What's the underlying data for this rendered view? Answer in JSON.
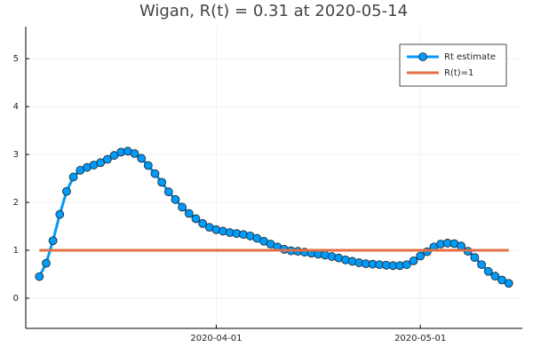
{
  "chart_data": {
    "type": "line",
    "title": "Wigan, R(t) = 0.31 at 2020-05-14",
    "series": [
      {
        "name": "Rt estimate",
        "color": "#009af9",
        "markers": true,
        "x": [
          "2020-03-06",
          "2020-03-07",
          "2020-03-08",
          "2020-03-09",
          "2020-03-10",
          "2020-03-11",
          "2020-03-12",
          "2020-03-13",
          "2020-03-14",
          "2020-03-15",
          "2020-03-16",
          "2020-03-17",
          "2020-03-18",
          "2020-03-19",
          "2020-03-20",
          "2020-03-21",
          "2020-03-22",
          "2020-03-23",
          "2020-03-24",
          "2020-03-25",
          "2020-03-26",
          "2020-03-27",
          "2020-03-28",
          "2020-03-29",
          "2020-03-30",
          "2020-03-31",
          "2020-04-01",
          "2020-04-02",
          "2020-04-03",
          "2020-04-04",
          "2020-04-05",
          "2020-04-06",
          "2020-04-07",
          "2020-04-08",
          "2020-04-09",
          "2020-04-10",
          "2020-04-11",
          "2020-04-12",
          "2020-04-13",
          "2020-04-14",
          "2020-04-15",
          "2020-04-16",
          "2020-04-17",
          "2020-04-18",
          "2020-04-19",
          "2020-04-20",
          "2020-04-21",
          "2020-04-22",
          "2020-04-23",
          "2020-04-24",
          "2020-04-25",
          "2020-04-26",
          "2020-04-27",
          "2020-04-28",
          "2020-04-29",
          "2020-04-30",
          "2020-05-01",
          "2020-05-02",
          "2020-05-03",
          "2020-05-04",
          "2020-05-05",
          "2020-05-06",
          "2020-05-07",
          "2020-05-08",
          "2020-05-09",
          "2020-05-10",
          "2020-05-11",
          "2020-05-12",
          "2020-05-13",
          "2020-05-14"
        ],
        "values": [
          0.45,
          0.73,
          1.2,
          1.75,
          2.23,
          2.53,
          2.67,
          2.73,
          2.78,
          2.83,
          2.9,
          2.98,
          3.05,
          3.07,
          3.02,
          2.92,
          2.77,
          2.6,
          2.42,
          2.22,
          2.06,
          1.9,
          1.77,
          1.66,
          1.56,
          1.48,
          1.43,
          1.4,
          1.37,
          1.35,
          1.33,
          1.3,
          1.25,
          1.19,
          1.13,
          1.07,
          1.02,
          0.99,
          0.98,
          0.96,
          0.94,
          0.92,
          0.9,
          0.87,
          0.84,
          0.8,
          0.77,
          0.74,
          0.72,
          0.71,
          0.7,
          0.69,
          0.68,
          0.68,
          0.7,
          0.78,
          0.88,
          0.97,
          1.07,
          1.13,
          1.15,
          1.14,
          1.09,
          0.98,
          0.85,
          0.7,
          0.56,
          0.46,
          0.38,
          0.31
        ]
      },
      {
        "name": "R(t)=1",
        "color": "#e26f46",
        "markers": false,
        "x": [
          "2020-03-06",
          "2020-05-14"
        ],
        "values": [
          1,
          1
        ]
      }
    ],
    "xlim": [
      "2020-03-04",
      "2020-05-16"
    ],
    "xticks": [
      "2020-04-01",
      "2020-05-01"
    ],
    "ylim": [
      -0.63,
      5.67
    ],
    "yticks": [
      0,
      1,
      2,
      3,
      4,
      5
    ],
    "grid": true,
    "legend": "top-right"
  }
}
